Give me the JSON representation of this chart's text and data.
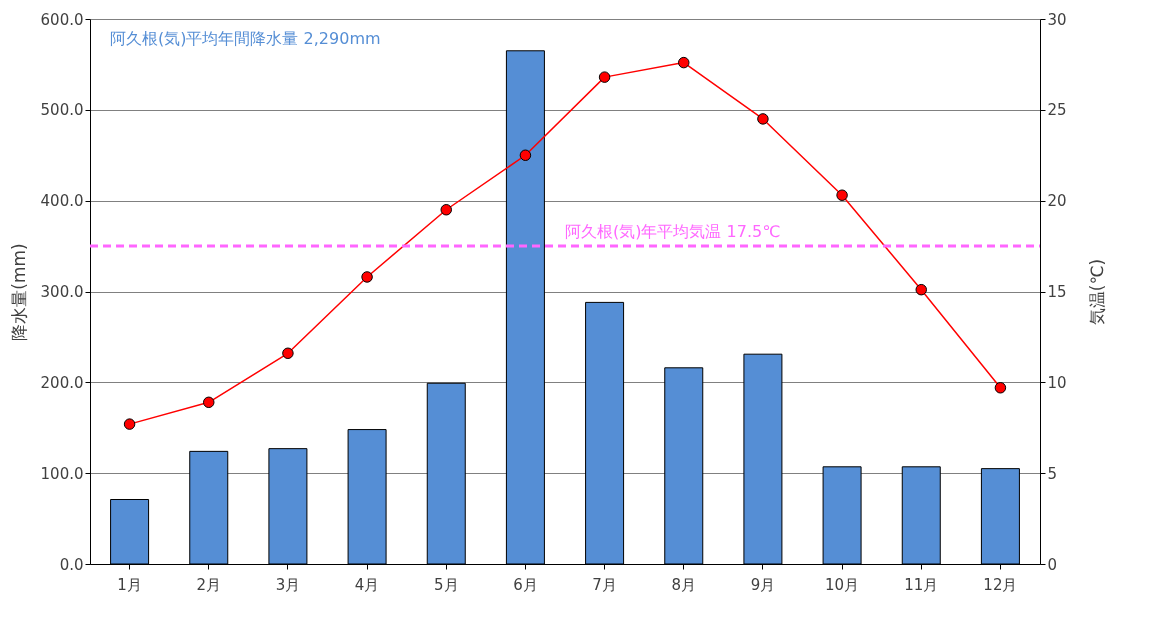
{
  "chart_data": {
    "type": "bar",
    "ylabel": "降水量(mm)",
    "y2label": "気温(℃)",
    "categories": [
      "1月",
      "2月",
      "3月",
      "4月",
      "5月",
      "6月",
      "7月",
      "8月",
      "9月",
      "10月",
      "11月",
      "12月"
    ],
    "series": [
      {
        "color": "#558ed5",
        "values": [
          71,
          124,
          127,
          148,
          199,
          565,
          288,
          216,
          231,
          107,
          107,
          105
        ]
      },
      {
        "type": "line",
        "axis": "y2",
        "color": "#ff0000",
        "marker": "circle",
        "line_style": "solid",
        "values": [
          7.7,
          8.9,
          11.6,
          15.8,
          19.5,
          22.5,
          26.8,
          27.6,
          24.5,
          20.3,
          15.1,
          9.7
        ]
      }
    ],
    "ylim": [
      0,
      600
    ],
    "yticks": [
      {
        "value": 0,
        "label": "0.0"
      },
      {
        "value": 100,
        "label": "100.0"
      },
      {
        "value": 200,
        "label": "200.0"
      },
      {
        "value": 300,
        "label": "300.0"
      },
      {
        "value": 400,
        "label": "400.0"
      },
      {
        "value": 500,
        "label": "500.0"
      },
      {
        "value": 600,
        "label": "600.0"
      }
    ],
    "y2lim": [
      0,
      30
    ],
    "y2ticks": [
      0,
      5,
      10,
      15,
      20,
      25,
      30
    ],
    "ref_lines": [
      {
        "axis": "y2",
        "value": 17.5,
        "label": "阿久根(気)年平均気温 17.5℃",
        "color": "#ff66ff",
        "line_style": "dashed"
      }
    ],
    "annotations": [
      "阿久根(気)平均年間降水量 2,290mm"
    ],
    "grid": "y"
  }
}
